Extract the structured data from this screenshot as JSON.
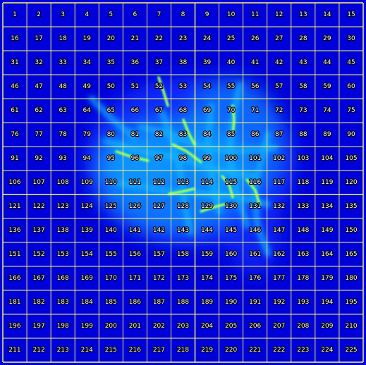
{
  "grid": {
    "rows": 15,
    "cols": 15,
    "labels": [
      "1",
      "2",
      "3",
      "4",
      "5",
      "6",
      "7",
      "8",
      "9",
      "10",
      "11",
      "12",
      "13",
      "14",
      "15",
      "16",
      "17",
      "18",
      "19",
      "20",
      "21",
      "22",
      "23",
      "24",
      "25",
      "26",
      "27",
      "28",
      "29",
      "30",
      "31",
      "32",
      "33",
      "34",
      "35",
      "36",
      "37",
      "38",
      "39",
      "40",
      "41",
      "42",
      "43",
      "44",
      "45",
      "46",
      "47",
      "48",
      "49",
      "50",
      "51",
      "52",
      "53",
      "54",
      "55",
      "56",
      "57",
      "58",
      "59",
      "60",
      "61",
      "62",
      "63",
      "64",
      "65",
      "66",
      "67",
      "68",
      "69",
      "70",
      "71",
      "72",
      "73",
      "74",
      "75",
      "76",
      "77",
      "78",
      "79",
      "80",
      "81",
      "82",
      "83",
      "84",
      "85",
      "86",
      "87",
      "88",
      "89",
      "90",
      "91",
      "92",
      "93",
      "94",
      "95",
      "96",
      "97",
      "98",
      "99",
      "100",
      "101",
      "102",
      "103",
      "104",
      "105",
      "106",
      "107",
      "108",
      "109",
      "110",
      "111",
      "112",
      "113",
      "114",
      "115",
      "116",
      "117",
      "118",
      "119",
      "120",
      "121",
      "122",
      "123",
      "124",
      "125",
      "126",
      "127",
      "128",
      "129",
      "130",
      "131",
      "132",
      "133",
      "134",
      "135",
      "136",
      "137",
      "138",
      "139",
      "140",
      "141",
      "142",
      "143",
      "144",
      "145",
      "146",
      "147",
      "148",
      "149",
      "150",
      "151",
      "152",
      "153",
      "154",
      "155",
      "156",
      "157",
      "158",
      "159",
      "160",
      "161",
      "162",
      "163",
      "164",
      "165",
      "166",
      "167",
      "168",
      "169",
      "170",
      "171",
      "172",
      "173",
      "174",
      "175",
      "176",
      "177",
      "178",
      "179",
      "180",
      "181",
      "182",
      "183",
      "184",
      "185",
      "186",
      "187",
      "188",
      "189",
      "190",
      "191",
      "192",
      "193",
      "194",
      "195",
      "196",
      "197",
      "198",
      "199",
      "200",
      "201",
      "202",
      "203",
      "204",
      "205",
      "206",
      "207",
      "208",
      "209",
      "210",
      "211",
      "212",
      "213",
      "214",
      "215",
      "216",
      "217",
      "218",
      "219",
      "220",
      "221",
      "222",
      "223",
      "224",
      "225"
    ]
  },
  "colors": {
    "background": "#0000d8",
    "grid_line": "#ffff66",
    "low": "#1030ff",
    "mid": "#10b0ff",
    "high": "#00ff80",
    "peak": "#ffff00",
    "label_text": "#ffffff",
    "label_outline": "#000000"
  }
}
